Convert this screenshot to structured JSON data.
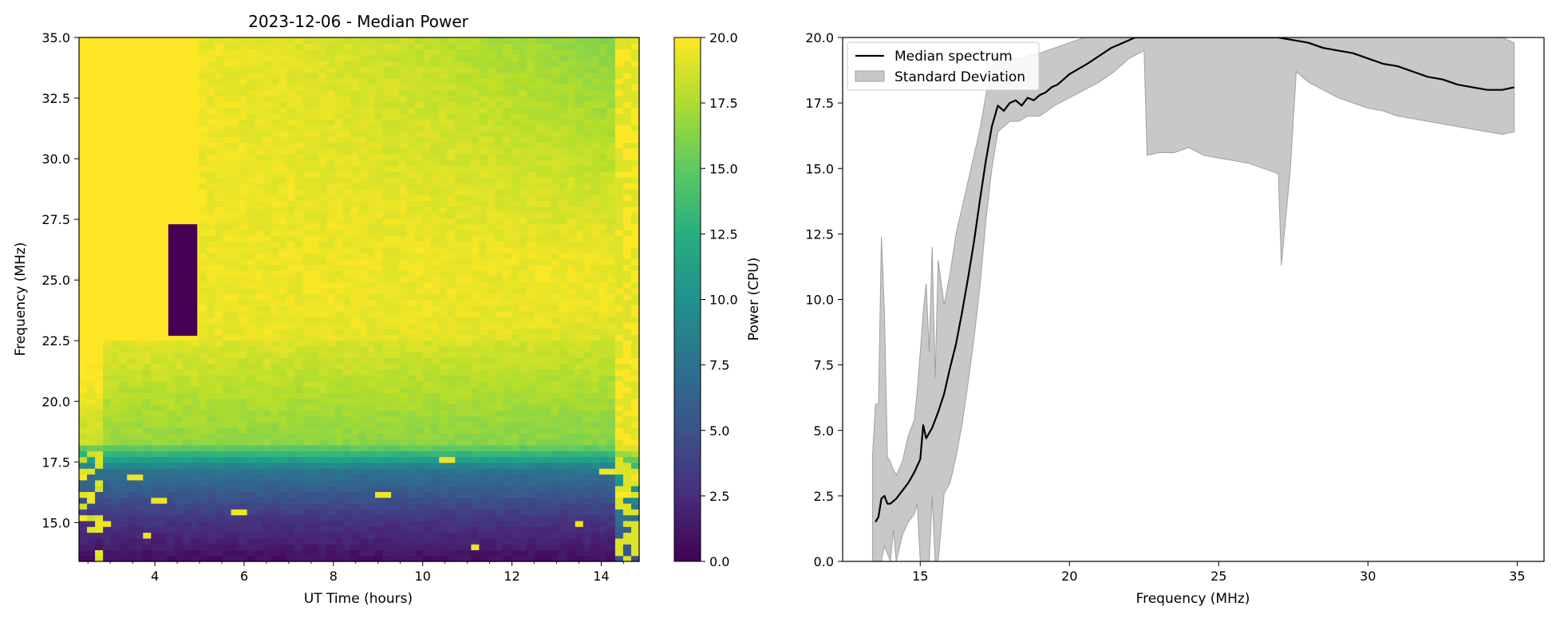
{
  "colors": {
    "std_fill": "#c8c8c8",
    "std_edge": "#a0a0a0",
    "median_line": "#000000"
  },
  "chart_data": [
    {
      "type": "heatmap",
      "title": "2023-12-06 - Median Power",
      "xlabel": "UT Time (hours)",
      "ylabel": "Frequency (MHz)",
      "xlim": [
        2.3,
        14.85
      ],
      "ylim": [
        13.4,
        35.0
      ],
      "xticks": [
        4,
        6,
        8,
        10,
        12,
        14
      ],
      "xtick_labels": [
        "4",
        "6",
        "8",
        "10",
        "12",
        "14"
      ],
      "yticks": [
        15.0,
        17.5,
        20.0,
        22.5,
        25.0,
        27.5,
        30.0,
        32.5,
        35.0
      ],
      "ytick_labels": [
        "15.0",
        "17.5",
        "20.0",
        "22.5",
        "25.0",
        "27.5",
        "30.0",
        "32.5",
        "35.0"
      ],
      "colormap": "viridis",
      "colorbar": {
        "label": "Power (CPU)",
        "range": [
          0.0,
          20.0
        ],
        "ticks": [
          0.0,
          2.5,
          5.0,
          7.5,
          10.0,
          12.5,
          15.0,
          17.5,
          20.0
        ],
        "tick_labels": [
          "0.0",
          "2.5",
          "5.0",
          "7.5",
          "10.0",
          "12.5",
          "15.0",
          "17.5",
          "20.0"
        ]
      },
      "gap_block": {
        "t_start": 4.3,
        "t_end": 4.95,
        "f_start": 22.7,
        "f_end": 27.3,
        "value": 0.0
      }
    },
    {
      "type": "line",
      "xlabel": "Frequency (MHz)",
      "ylabel": "",
      "xlim": [
        12.4,
        35.9
      ],
      "ylim": [
        0.0,
        20.0
      ],
      "xticks": [
        15,
        20,
        25,
        30,
        35
      ],
      "xtick_labels": [
        "15",
        "20",
        "25",
        "30",
        "35"
      ],
      "yticks": [
        0.0,
        2.5,
        5.0,
        7.5,
        10.0,
        12.5,
        15.0,
        17.5,
        20.0
      ],
      "ytick_labels": [
        "0.0",
        "2.5",
        "5.0",
        "7.5",
        "10.0",
        "12.5",
        "15.0",
        "17.5",
        "20.0"
      ],
      "legend_position": "upper-left",
      "series": [
        {
          "name": "Median spectrum",
          "x": [
            13.5,
            13.6,
            13.7,
            13.8,
            13.9,
            14.0,
            14.2,
            14.4,
            14.6,
            14.8,
            15.0,
            15.1,
            15.2,
            15.4,
            15.6,
            15.8,
            16.0,
            16.2,
            16.4,
            16.6,
            16.8,
            17.0,
            17.2,
            17.4,
            17.6,
            17.8,
            18.0,
            18.2,
            18.4,
            18.6,
            18.8,
            19.0,
            19.2,
            19.4,
            19.6,
            19.8,
            20.0,
            20.3,
            20.6,
            21.0,
            21.4,
            21.8,
            22.2,
            22.6,
            23.0,
            24.0,
            25.0,
            26.0,
            27.0,
            27.5,
            28.0,
            28.5,
            29.0,
            29.5,
            30.0,
            30.5,
            31.0,
            31.5,
            32.0,
            32.5,
            33.0,
            33.5,
            34.0,
            34.5,
            34.9
          ],
          "values": [
            1.5,
            1.7,
            2.4,
            2.5,
            2.2,
            2.2,
            2.4,
            2.7,
            3.0,
            3.4,
            3.9,
            5.2,
            4.7,
            5.1,
            5.7,
            6.4,
            7.4,
            8.3,
            9.5,
            10.8,
            12.2,
            13.8,
            15.3,
            16.6,
            17.4,
            17.2,
            17.5,
            17.6,
            17.4,
            17.7,
            17.6,
            17.8,
            17.9,
            18.1,
            18.2,
            18.4,
            18.6,
            18.8,
            19.0,
            19.3,
            19.6,
            19.8,
            20.0,
            20.0,
            20.0,
            20.0,
            20.0,
            20.0,
            20.0,
            19.9,
            19.8,
            19.6,
            19.5,
            19.4,
            19.2,
            19.0,
            18.9,
            18.7,
            18.5,
            18.4,
            18.2,
            18.1,
            18.0,
            18.0,
            18.1
          ]
        },
        {
          "name": "Standard Deviation",
          "x": [
            13.4,
            13.5,
            13.6,
            13.7,
            13.8,
            13.9,
            14.0,
            14.1,
            14.2,
            14.4,
            14.6,
            14.8,
            14.9,
            15.0,
            15.1,
            15.2,
            15.3,
            15.4,
            15.5,
            15.6,
            15.8,
            16.0,
            16.2,
            16.4,
            16.6,
            16.8,
            17.0,
            17.2,
            17.4,
            17.6,
            17.8,
            18.0,
            18.3,
            18.6,
            19.0,
            19.5,
            20.0,
            20.5,
            21.0,
            21.5,
            22.0,
            22.5,
            22.6,
            23.0,
            23.5,
            24.0,
            24.5,
            25.0,
            25.5,
            26.0,
            26.5,
            27.0,
            27.1,
            27.4,
            27.6,
            28.0,
            28.5,
            29.0,
            29.5,
            30.0,
            30.5,
            31.0,
            31.5,
            32.0,
            32.5,
            33.0,
            33.5,
            34.0,
            34.5,
            34.9
          ],
          "lower": [
            0.0,
            0.0,
            0.0,
            0.0,
            0.6,
            0.3,
            0.0,
            1.2,
            0.0,
            1.0,
            1.5,
            1.8,
            2.2,
            0.0,
            0.0,
            0.0,
            0.0,
            2.5,
            0.0,
            0.0,
            2.6,
            3.0,
            4.0,
            5.2,
            6.8,
            8.5,
            10.5,
            13.0,
            15.0,
            16.4,
            16.6,
            16.8,
            16.8,
            17.0,
            17.0,
            17.4,
            17.7,
            18.0,
            18.3,
            18.7,
            19.2,
            19.5,
            15.5,
            15.6,
            15.6,
            15.8,
            15.5,
            15.4,
            15.3,
            15.2,
            15.0,
            14.8,
            11.3,
            15.0,
            18.7,
            18.3,
            18.0,
            17.7,
            17.5,
            17.3,
            17.2,
            17.0,
            16.9,
            16.8,
            16.7,
            16.6,
            16.5,
            16.4,
            16.3,
            16.4
          ],
          "upper": [
            4.0,
            6.0,
            6.0,
            12.4,
            9.5,
            4.0,
            3.8,
            3.5,
            3.3,
            3.8,
            4.8,
            5.4,
            6.5,
            8.0,
            9.5,
            10.6,
            8.0,
            12.0,
            7.0,
            11.5,
            9.8,
            11.0,
            12.5,
            13.5,
            14.5,
            15.5,
            16.5,
            17.8,
            18.8,
            19.4,
            19.0,
            19.2,
            19.2,
            19.3,
            19.4,
            19.6,
            19.8,
            20.0,
            20.0,
            20.0,
            20.0,
            20.0,
            20.0,
            20.0,
            20.0,
            20.0,
            20.0,
            20.0,
            20.0,
            20.0,
            20.0,
            20.0,
            20.0,
            20.0,
            20.0,
            20.0,
            20.0,
            20.0,
            20.0,
            20.0,
            20.0,
            20.0,
            20.0,
            20.0,
            20.0,
            20.0,
            20.0,
            20.0,
            20.0,
            19.8
          ]
        }
      ]
    }
  ]
}
